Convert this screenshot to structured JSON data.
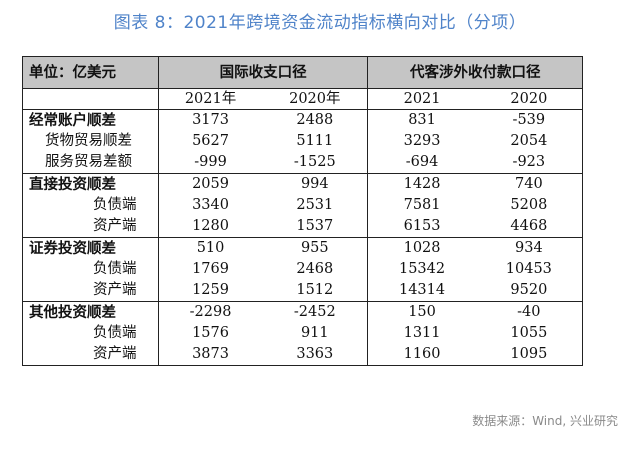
{
  "title": "图表 8：2021年跨境资金流动指标横向对比（分项）",
  "header": {
    "unit": "单位：亿美元",
    "group1": "国际收支口径",
    "group2": "代客涉外收付款口径",
    "years": [
      "2021年",
      "2020年",
      "2021",
      "2020"
    ]
  },
  "rows": [
    {
      "label": "经常账户顺差",
      "values": [
        "3173",
        "2488",
        "831",
        "-539"
      ]
    },
    {
      "label": "货物贸易顺差",
      "values": [
        "5627",
        "5111",
        "3293",
        "2054"
      ]
    },
    {
      "label": "服务贸易差额",
      "values": [
        "-999",
        "-1525",
        "-694",
        "-923"
      ]
    },
    {
      "label": "直接投资顺差",
      "values": [
        "2059",
        "994",
        "1428",
        "740"
      ]
    },
    {
      "label": "负债端",
      "values": [
        "3340",
        "2531",
        "7581",
        "5208"
      ]
    },
    {
      "label": "资产端",
      "values": [
        "1280",
        "1537",
        "6153",
        "4468"
      ]
    },
    {
      "label": "证券投资顺差",
      "values": [
        "510",
        "955",
        "1028",
        "934"
      ]
    },
    {
      "label": "负债端",
      "values": [
        "1769",
        "2468",
        "15342",
        "10453"
      ]
    },
    {
      "label": "资产端",
      "values": [
        "1259",
        "1512",
        "14314",
        "9520"
      ]
    },
    {
      "label": "其他投资顺差",
      "values": [
        "-2298",
        "-2452",
        "150",
        "-40"
      ]
    },
    {
      "label": "负债端",
      "values": [
        "1576",
        "911",
        "1311",
        "1055"
      ]
    },
    {
      "label": "资产端",
      "values": [
        "3873",
        "3363",
        "1160",
        "1095"
      ]
    }
  ],
  "source": "数据来源：Wind, 兴业研究"
}
